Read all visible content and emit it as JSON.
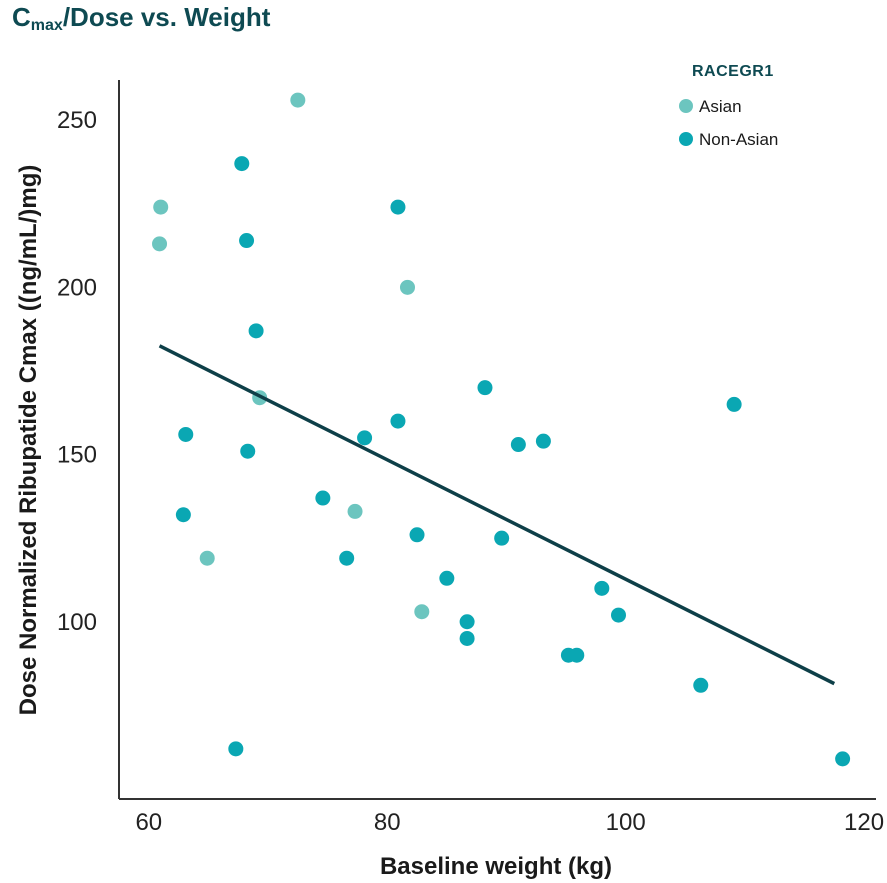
{
  "chart_data": {
    "type": "scatter",
    "title_main": "C",
    "title_sub": "max",
    "title_rest": "/Dose vs. Weight",
    "xlabel": "Baseline weight (kg)",
    "ylabel": "Dose Normalized Ribupatide Cmax ((ng/mL/)mg)",
    "xlim": [
      57.5,
      121
    ],
    "ylim": [
      47,
      262
    ],
    "x_ticks": [
      60,
      80,
      100,
      120
    ],
    "y_ticks": [
      100,
      150,
      200,
      250
    ],
    "legend": {
      "title": "RACEGR1",
      "position": "top-right"
    },
    "series": [
      {
        "name": "Asian",
        "color": "#6cc5bf",
        "points": [
          {
            "x": 72.5,
            "y": 256
          },
          {
            "x": 61.0,
            "y": 224
          },
          {
            "x": 60.9,
            "y": 213
          },
          {
            "x": 81.7,
            "y": 200
          },
          {
            "x": 69.3,
            "y": 167
          },
          {
            "x": 77.3,
            "y": 133
          },
          {
            "x": 64.9,
            "y": 119
          },
          {
            "x": 82.9,
            "y": 103
          }
        ]
      },
      {
        "name": "Non-Asian",
        "color": "#0aa7b3",
        "points": [
          {
            "x": 67.8,
            "y": 237
          },
          {
            "x": 80.9,
            "y": 224
          },
          {
            "x": 68.2,
            "y": 214
          },
          {
            "x": 69.0,
            "y": 187
          },
          {
            "x": 88.2,
            "y": 170
          },
          {
            "x": 109.1,
            "y": 165
          },
          {
            "x": 80.9,
            "y": 160
          },
          {
            "x": 63.1,
            "y": 156
          },
          {
            "x": 78.1,
            "y": 155
          },
          {
            "x": 91.0,
            "y": 153
          },
          {
            "x": 93.1,
            "y": 154
          },
          {
            "x": 68.3,
            "y": 151
          },
          {
            "x": 74.6,
            "y": 137
          },
          {
            "x": 62.9,
            "y": 132
          },
          {
            "x": 82.5,
            "y": 126
          },
          {
            "x": 89.6,
            "y": 125
          },
          {
            "x": 76.6,
            "y": 119
          },
          {
            "x": 85.0,
            "y": 113
          },
          {
            "x": 98.0,
            "y": 110
          },
          {
            "x": 99.4,
            "y": 102
          },
          {
            "x": 86.7,
            "y": 100
          },
          {
            "x": 86.7,
            "y": 95
          },
          {
            "x": 95.2,
            "y": 90
          },
          {
            "x": 95.9,
            "y": 90
          },
          {
            "x": 106.3,
            "y": 81
          },
          {
            "x": 67.3,
            "y": 62
          },
          {
            "x": 118.2,
            "y": 59
          }
        ]
      }
    ],
    "trend_line": {
      "color": "#0e3f48",
      "points": [
        {
          "x": 60.9,
          "y": 182.5
        },
        {
          "x": 117.5,
          "y": 81.5
        }
      ]
    }
  }
}
